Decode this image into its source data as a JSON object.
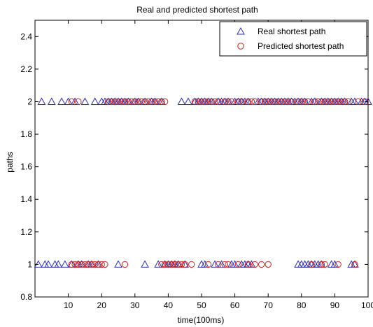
{
  "chart_data": {
    "type": "scatter",
    "title": "Real and predicted shortest path",
    "xlabel": "time(100ms)",
    "ylabel": "paths",
    "xlim": [
      0,
      100
    ],
    "ylim": [
      0.8,
      2.5
    ],
    "x_ticks": [
      10,
      20,
      30,
      40,
      50,
      60,
      70,
      80,
      90,
      100
    ],
    "y_ticks": [
      0.8,
      1,
      1.2,
      1.4,
      1.6,
      1.8,
      2,
      2.2,
      2.4
    ],
    "legend_position": "top-right",
    "grid": false,
    "series": [
      {
        "name": "Real shortest path",
        "marker": "triangle",
        "color": "#2b2bb0",
        "points": [
          [
            2,
            2
          ],
          [
            5,
            2
          ],
          [
            8,
            2
          ],
          [
            10,
            2
          ],
          [
            12,
            2
          ],
          [
            15,
            2
          ],
          [
            18,
            2
          ],
          [
            20,
            2
          ],
          [
            21,
            2
          ],
          [
            22,
            2
          ],
          [
            23,
            2
          ],
          [
            24,
            2
          ],
          [
            25,
            2
          ],
          [
            26,
            2
          ],
          [
            27,
            2
          ],
          [
            28,
            2
          ],
          [
            30,
            2
          ],
          [
            31,
            2
          ],
          [
            33,
            2
          ],
          [
            35,
            2
          ],
          [
            36,
            2
          ],
          [
            38,
            2
          ],
          [
            44,
            2
          ],
          [
            46,
            2
          ],
          [
            48,
            2
          ],
          [
            49,
            2
          ],
          [
            50,
            2
          ],
          [
            51,
            2
          ],
          [
            52,
            2
          ],
          [
            53,
            2
          ],
          [
            55,
            2
          ],
          [
            56,
            2
          ],
          [
            57,
            2
          ],
          [
            58,
            2
          ],
          [
            60,
            2
          ],
          [
            61,
            2
          ],
          [
            62,
            2
          ],
          [
            63,
            2
          ],
          [
            64,
            2
          ],
          [
            67,
            2
          ],
          [
            68,
            2
          ],
          [
            69,
            2
          ],
          [
            70,
            2
          ],
          [
            71,
            2
          ],
          [
            72,
            2
          ],
          [
            73,
            2
          ],
          [
            74,
            2
          ],
          [
            75,
            2
          ],
          [
            76,
            2
          ],
          [
            77,
            2
          ],
          [
            78,
            2
          ],
          [
            79,
            2
          ],
          [
            80,
            2
          ],
          [
            81,
            2
          ],
          [
            83,
            2
          ],
          [
            84,
            2
          ],
          [
            86,
            2
          ],
          [
            87,
            2
          ],
          [
            88,
            2
          ],
          [
            89,
            2
          ],
          [
            90,
            2
          ],
          [
            91,
            2
          ],
          [
            92,
            2
          ],
          [
            93,
            2
          ],
          [
            95,
            2
          ],
          [
            96,
            2
          ],
          [
            98,
            2
          ],
          [
            99,
            2
          ],
          [
            100,
            2
          ],
          [
            1,
            1
          ],
          [
            3,
            1
          ],
          [
            4,
            1
          ],
          [
            6,
            1
          ],
          [
            7,
            1
          ],
          [
            9,
            1
          ],
          [
            11,
            1
          ],
          [
            13,
            1
          ],
          [
            14,
            1
          ],
          [
            16,
            1
          ],
          [
            17,
            1
          ],
          [
            19,
            1
          ],
          [
            25,
            1
          ],
          [
            33,
            1
          ],
          [
            37,
            1
          ],
          [
            39,
            1
          ],
          [
            40,
            1
          ],
          [
            41,
            1
          ],
          [
            42,
            1
          ],
          [
            43,
            1
          ],
          [
            45,
            1
          ],
          [
            50,
            1
          ],
          [
            51,
            1
          ],
          [
            54,
            1
          ],
          [
            56,
            1
          ],
          [
            59,
            1
          ],
          [
            60,
            1
          ],
          [
            62,
            1
          ],
          [
            63,
            1
          ],
          [
            64,
            1
          ],
          [
            65,
            1
          ],
          [
            79,
            1
          ],
          [
            80,
            1
          ],
          [
            81,
            1
          ],
          [
            82,
            1
          ],
          [
            83,
            1
          ],
          [
            84,
            1
          ],
          [
            85,
            1
          ],
          [
            86,
            1
          ],
          [
            89,
            1
          ],
          [
            90,
            1
          ],
          [
            95,
            1
          ],
          [
            96,
            1
          ]
        ]
      },
      {
        "name": "Predicted shortest path",
        "marker": "circle",
        "color": "#c42020",
        "points": [
          [
            11,
            2
          ],
          [
            13,
            2
          ],
          [
            22,
            2
          ],
          [
            23,
            2
          ],
          [
            24,
            2
          ],
          [
            25,
            2
          ],
          [
            26,
            2
          ],
          [
            27,
            2
          ],
          [
            28,
            2
          ],
          [
            29,
            2
          ],
          [
            30,
            2
          ],
          [
            31,
            2
          ],
          [
            32,
            2
          ],
          [
            33,
            2
          ],
          [
            34,
            2
          ],
          [
            35,
            2
          ],
          [
            36,
            2
          ],
          [
            37,
            2
          ],
          [
            38,
            2
          ],
          [
            39,
            2
          ],
          [
            48,
            2
          ],
          [
            49,
            2
          ],
          [
            50,
            2
          ],
          [
            51,
            2
          ],
          [
            52,
            2
          ],
          [
            53,
            2
          ],
          [
            54,
            2
          ],
          [
            55,
            2
          ],
          [
            57,
            2
          ],
          [
            58,
            2
          ],
          [
            59,
            2
          ],
          [
            61,
            2
          ],
          [
            62,
            2
          ],
          [
            64,
            2
          ],
          [
            65,
            2
          ],
          [
            66,
            2
          ],
          [
            68,
            2
          ],
          [
            69,
            2
          ],
          [
            70,
            2
          ],
          [
            71,
            2
          ],
          [
            72,
            2
          ],
          [
            73,
            2
          ],
          [
            74,
            2
          ],
          [
            75,
            2
          ],
          [
            76,
            2
          ],
          [
            77,
            2
          ],
          [
            79,
            2
          ],
          [
            80,
            2
          ],
          [
            81,
            2
          ],
          [
            82,
            2
          ],
          [
            84,
            2
          ],
          [
            85,
            2
          ],
          [
            86,
            2
          ],
          [
            87,
            2
          ],
          [
            88,
            2
          ],
          [
            89,
            2
          ],
          [
            90,
            2
          ],
          [
            91,
            2
          ],
          [
            92,
            2
          ],
          [
            93,
            2
          ],
          [
            94,
            2
          ],
          [
            97,
            2
          ],
          [
            99,
            2
          ],
          [
            11,
            1
          ],
          [
            12,
            1
          ],
          [
            13,
            1
          ],
          [
            14,
            1
          ],
          [
            15,
            1
          ],
          [
            16,
            1
          ],
          [
            17,
            1
          ],
          [
            18,
            1
          ],
          [
            19,
            1
          ],
          [
            20,
            1
          ],
          [
            21,
            1
          ],
          [
            27,
            1
          ],
          [
            38,
            1
          ],
          [
            39,
            1
          ],
          [
            40,
            1
          ],
          [
            41,
            1
          ],
          [
            42,
            1
          ],
          [
            43,
            1
          ],
          [
            44,
            1
          ],
          [
            45,
            1
          ],
          [
            47,
            1
          ],
          [
            52,
            1
          ],
          [
            55,
            1
          ],
          [
            57,
            1
          ],
          [
            58,
            1
          ],
          [
            61,
            1
          ],
          [
            64,
            1
          ],
          [
            66,
            1
          ],
          [
            68,
            1
          ],
          [
            70,
            1
          ],
          [
            83,
            1
          ],
          [
            86,
            1
          ],
          [
            87,
            1
          ],
          [
            91,
            1
          ],
          [
            96,
            1
          ]
        ]
      }
    ]
  }
}
